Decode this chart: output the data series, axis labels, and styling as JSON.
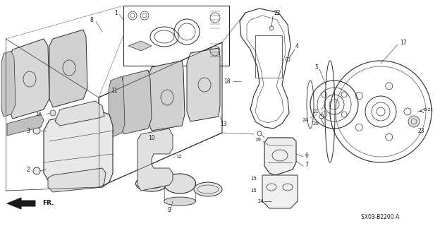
{
  "background_color": "#ffffff",
  "line_color": "#2a2a2a",
  "text_color": "#1a1a1a",
  "diagram_code": "SX03-B2200 A",
  "fr_label": "FR.",
  "bg_fill": "#ffffff"
}
